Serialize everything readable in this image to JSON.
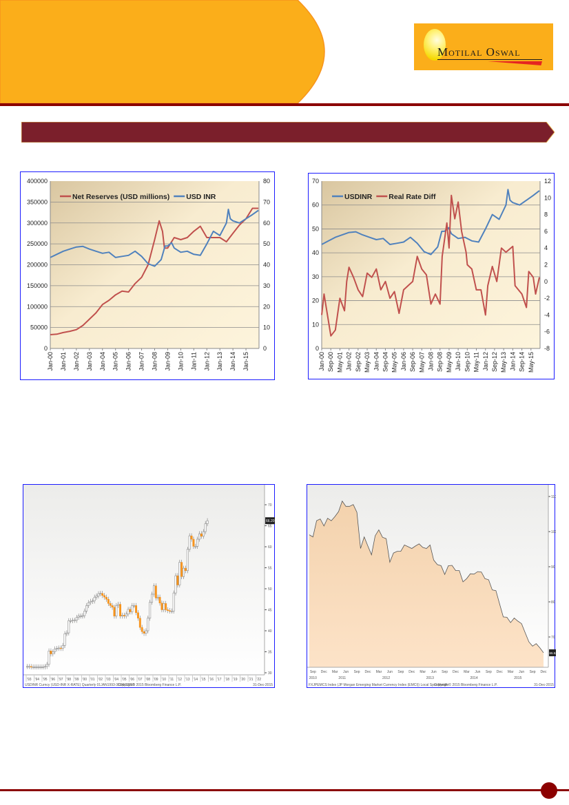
{
  "colors": {
    "orange": "#fbae1a",
    "maroon": "#7b1f2b",
    "rule": "#8b0000",
    "blue": "#4f81bd",
    "red": "#c0504d",
    "border": "#1a1aff"
  },
  "logo": {
    "text": "Motilal Oswal"
  },
  "chart_data": [
    {
      "type": "line",
      "title": "",
      "legend": [
        "Net Reserves (USD millions)",
        "USD INR"
      ],
      "legend_position": "top-left",
      "ylim_left": [
        0,
        400000
      ],
      "ylim_right": [
        0,
        80
      ],
      "yticks_left": [
        "0",
        "50000",
        "100000",
        "150000",
        "200000",
        "250000",
        "300000",
        "350000",
        "400000"
      ],
      "yticks_right": [
        "0",
        "10",
        "20",
        "30",
        "40",
        "50",
        "60",
        "70",
        "80"
      ],
      "xticks": [
        "Jan-00",
        "Jan-01",
        "Jan-02",
        "Jan-03",
        "Jan-04",
        "Jan-05",
        "Jan-06",
        "Jan-07",
        "Jan-08",
        "Jan-09",
        "Jan-10",
        "Jan-11",
        "Jan-12",
        "Jan-13",
        "Jan-14",
        "Jan-15"
      ],
      "xlim": [
        2000.0,
        2016.0
      ],
      "series": [
        {
          "name": "Net Reserves (USD millions)",
          "axis": "left",
          "x": [
            2000,
            2000.5,
            2001,
            2001.5,
            2002,
            2002.5,
            2003,
            2003.5,
            2004,
            2004.5,
            2005,
            2005.5,
            2006,
            2006.5,
            2007,
            2007.5,
            2008,
            2008.35,
            2008.6,
            2008.75,
            2009,
            2009.5,
            2010,
            2010.5,
            2011,
            2011.5,
            2012,
            2012.5,
            2013,
            2013.5,
            2014,
            2014.5,
            2015,
            2015.5,
            2015.95
          ],
          "values": [
            33000,
            34000,
            38000,
            41000,
            45000,
            55000,
            70000,
            85000,
            105000,
            115000,
            128000,
            137000,
            135000,
            155000,
            170000,
            200000,
            260000,
            305000,
            280000,
            240000,
            240000,
            265000,
            260000,
            265000,
            280000,
            292000,
            265000,
            265000,
            265000,
            255000,
            275000,
            295000,
            310000,
            335000,
            335000
          ]
        },
        {
          "name": "USD INR",
          "axis": "right",
          "x": [
            2000,
            2000.5,
            2001,
            2001.5,
            2002,
            2002.5,
            2003,
            2003.5,
            2004,
            2004.5,
            2005,
            2005.5,
            2006,
            2006.5,
            2007,
            2007.5,
            2008,
            2008.5,
            2008.8,
            2009,
            2009.3,
            2009.5,
            2010,
            2010.5,
            2011,
            2011.5,
            2012,
            2012.5,
            2013,
            2013.5,
            2013.65,
            2013.8,
            2014,
            2014.5,
            2015,
            2015.5,
            2015.95
          ],
          "values": [
            43.5,
            45,
            46.5,
            47.5,
            48.5,
            48.8,
            47.5,
            46.5,
            45.5,
            46,
            43.5,
            44,
            44.5,
            46.5,
            44,
            40.5,
            39.3,
            42.5,
            49,
            49,
            50.5,
            48,
            46,
            46.5,
            45,
            44.5,
            50,
            56,
            54,
            60,
            66.5,
            62,
            61,
            60,
            62,
            64,
            66
          ]
        }
      ]
    },
    {
      "type": "line",
      "title": "",
      "legend": [
        "USDINR",
        "Real Rate Diff"
      ],
      "legend_position": "top-left",
      "ylim_left": [
        0,
        70
      ],
      "ylim_right": [
        -8,
        12
      ],
      "yticks_left": [
        "0",
        "10",
        "20",
        "30",
        "40",
        "50",
        "60",
        "70"
      ],
      "yticks_right": [
        "-8",
        "-6",
        "-4",
        "-2",
        "0",
        "2",
        "4",
        "6",
        "8",
        "10",
        "12"
      ],
      "xticks": [
        "Jan-00",
        "Sep-00",
        "May-01",
        "Jan-02",
        "Sep-02",
        "May-03",
        "Jan-04",
        "Sep-04",
        "May-05",
        "Jan-06",
        "Sep-06",
        "May-07",
        "Jan-08",
        "Sep-08",
        "May-09",
        "Jan-10",
        "Sep-10",
        "May-11",
        "Jan-12",
        "Sep-12",
        "May-13",
        "Jan-14",
        "Sep-14",
        "May-15"
      ],
      "xlim": [
        2000.0,
        2016.0
      ],
      "series": [
        {
          "name": "USDINR",
          "axis": "left",
          "x": [
            2000,
            2000.5,
            2001,
            2001.5,
            2002,
            2002.5,
            2003,
            2003.5,
            2004,
            2004.5,
            2005,
            2005.5,
            2006,
            2006.5,
            2007,
            2007.5,
            2008,
            2008.5,
            2008.8,
            2009,
            2009.3,
            2009.5,
            2010,
            2010.5,
            2011,
            2011.5,
            2012,
            2012.5,
            2013,
            2013.5,
            2013.65,
            2013.8,
            2014,
            2014.5,
            2015,
            2015.5,
            2015.95
          ],
          "values": [
            43.5,
            45,
            46.5,
            47.5,
            48.5,
            48.8,
            47.5,
            46.5,
            45.5,
            46,
            43.5,
            44,
            44.5,
            46.5,
            44,
            40.5,
            39.3,
            42.5,
            49,
            49,
            50.5,
            48,
            46,
            46.5,
            45,
            44.5,
            50,
            56,
            54,
            60,
            66.5,
            62,
            61,
            60,
            62,
            64,
            66
          ]
        },
        {
          "name": "Real Rate Diff",
          "axis": "right",
          "x": [
            2000,
            2000.17,
            2000.67,
            2001,
            2001.33,
            2001.67,
            2001.83,
            2002,
            2002.33,
            2002.67,
            2003,
            2003.33,
            2003.67,
            2004,
            2004.33,
            2004.67,
            2005,
            2005.33,
            2005.67,
            2006,
            2006.33,
            2006.67,
            2007,
            2007.33,
            2007.67,
            2008,
            2008.33,
            2008.67,
            2008.83,
            2009.17,
            2009.33,
            2009.5,
            2009.75,
            2010,
            2010.25,
            2010.58,
            2010.67,
            2011,
            2011.33,
            2011.67,
            2012,
            2012.17,
            2012.5,
            2012.83,
            2013.17,
            2013.5,
            2014,
            2014.17,
            2014.67,
            2015,
            2015.17,
            2015.5,
            2015.67,
            2015.95
          ],
          "values": [
            -4,
            -1.5,
            -6.5,
            -5.8,
            -2,
            -3.5,
            0,
            1.7,
            0.5,
            -1,
            -1.8,
            1,
            0.5,
            1.5,
            -1,
            0,
            -2,
            -1.2,
            -3.8,
            -1,
            -0.5,
            0,
            3,
            1.5,
            0.8,
            -2.7,
            -1.5,
            -2.7,
            3,
            7,
            4,
            10.3,
            7.5,
            9.5,
            6,
            3.5,
            2,
            1.5,
            -1,
            -1,
            -4,
            -0.5,
            1.8,
            0,
            4,
            3.5,
            4.2,
            -0.5,
            -1.5,
            -3.1,
            1.2,
            0.5,
            -1.5,
            0.5
          ]
        }
      ]
    },
    {
      "type": "candlestick",
      "title": "",
      "ylim": [
        30,
        72
      ],
      "yticks": [
        "30",
        "35",
        "40",
        "45",
        "50",
        "55",
        "60",
        "65",
        "70"
      ],
      "xticks": [
        "'93",
        "'94",
        "'95",
        "'96",
        "'97",
        "'98",
        "'99",
        "'00",
        "'01",
        "'02",
        "'03",
        "'04",
        "'05",
        "'06",
        "'07",
        "'08",
        "'09",
        "'10",
        "'11",
        "'12",
        "'13",
        "'14",
        "'15",
        "'16",
        "'17",
        "'18",
        "'19",
        "'20",
        "'21",
        "'22"
      ],
      "last_price": "66.20",
      "footer_left": "USDINR Curncy (USD-INR X-RATE) Quarterly 01JAN1993-31DEC2015",
      "footer_center": "Copyright© 2015 Bloomberg Finance L.P.",
      "footer_right": "31-Dec-2015",
      "start_year": 1993,
      "quarterly_close": [
        31.5,
        31.5,
        31.4,
        31.4,
        31.4,
        31.4,
        31.4,
        31.4,
        31.4,
        31.5,
        32,
        35.2,
        34.5,
        35,
        35.7,
        35.8,
        35.9,
        35.8,
        36.5,
        39.3,
        39.5,
        42.4,
        42.4,
        42.5,
        42.5,
        43.2,
        43.5,
        43.5,
        43.6,
        44.7,
        46,
        46.7,
        47,
        47.1,
        48,
        48.3,
        48.8,
        48.9,
        48.4,
        48,
        47.5,
        46.5,
        46,
        45.6,
        43.5,
        46,
        46.3,
        43.5,
        43.7,
        43.5,
        44,
        45.1,
        44.5,
        46,
        46,
        44.3,
        43,
        40.8,
        39.8,
        39.4,
        40,
        43,
        46.8,
        48.7,
        50.7,
        47.8,
        48,
        46.6,
        45,
        46.5,
        45,
        44.8,
        44.7,
        44.7,
        49,
        53.1,
        50.9,
        56.3,
        52.9,
        54.9,
        54.3,
        59.4,
        62.6,
        61.8,
        60.1,
        60.1,
        61.8,
        63.1,
        62.5,
        63.6,
        65.5,
        66.2
      ]
    },
    {
      "type": "area",
      "title": "",
      "ylim": [
        65,
        112
      ],
      "yticks": [
        "70",
        "80",
        "90",
        "100",
        "110"
      ],
      "xticks": [
        "Sep",
        "Dec",
        "Mar",
        "Jun",
        "Sep",
        "Dec",
        "Mar",
        "Jun",
        "Sep",
        "Dec",
        "Mar",
        "Jun",
        "Sep",
        "Dec",
        "Mar",
        "Jun",
        "Sep",
        "Dec",
        "Mar",
        "Jun",
        "Sep",
        "Dec"
      ],
      "year_labels": [
        "2010",
        "2011",
        "2012",
        "2013",
        "2014",
        "2015"
      ],
      "last_value": "65.52",
      "footer_left": "FXJPEMCS Index (JP Morgan Emerging Market Currency Index (EMCI)) Local Spot  Month",
      "footer_center": "Copyright© 2015 Bloomberg Finance L.P.",
      "footer_right": "31-Dec-2015",
      "start": "Aug 2010",
      "monthly_values": [
        99.1,
        98.5,
        103.1,
        103.6,
        101.6,
        103.8,
        103.1,
        104.3,
        105.7,
        108.7,
        107.2,
        107.2,
        107.7,
        105.5,
        95.2,
        98.5,
        95.9,
        93.4,
        98.8,
        100.5,
        98.4,
        98,
        91.3,
        93.9,
        94.4,
        94.4,
        96.2,
        95.7,
        95.2,
        95.9,
        96.5,
        95.5,
        95.2,
        96.2,
        91.9,
        90.6,
        90.3,
        87.8,
        90.3,
        90.4,
        88.9,
        88.9,
        85.7,
        86.6,
        88,
        87.9,
        88.6,
        88.5,
        86.6,
        86.3,
        83.4,
        83.2,
        79.4,
        75.7,
        75.6,
        74.1,
        75.4,
        74.5,
        73.8,
        71.2,
        68.6,
        67.4,
        68.1,
        66.9,
        65.5
      ]
    }
  ]
}
